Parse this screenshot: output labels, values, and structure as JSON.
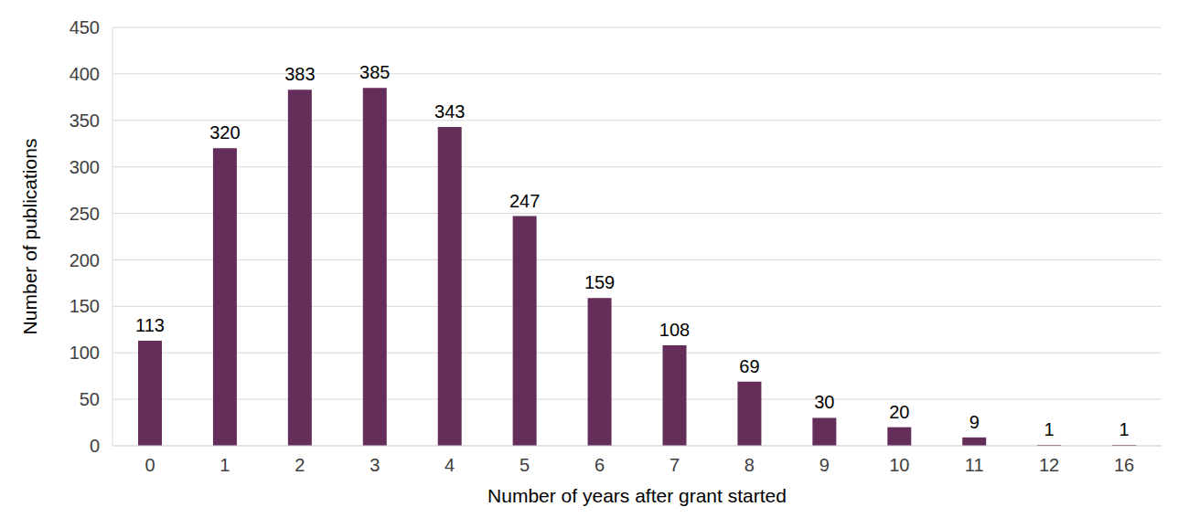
{
  "chart_data": {
    "type": "bar",
    "x_label": "Number of years after grant started",
    "y_label": "Number of publications",
    "categories": [
      "0",
      "1",
      "2",
      "3",
      "4",
      "5",
      "6",
      "7",
      "8",
      "9",
      "10",
      "11",
      "12",
      "16"
    ],
    "values": [
      113,
      320,
      383,
      385,
      343,
      247,
      159,
      108,
      69,
      30,
      20,
      9,
      1,
      1
    ],
    "color": "#652d5a",
    "ylim": [
      0,
      450
    ],
    "yticks": [
      0,
      50,
      100,
      150,
      200,
      250,
      300,
      350,
      400,
      450
    ],
    "grid": true,
    "data_labels": true
  }
}
